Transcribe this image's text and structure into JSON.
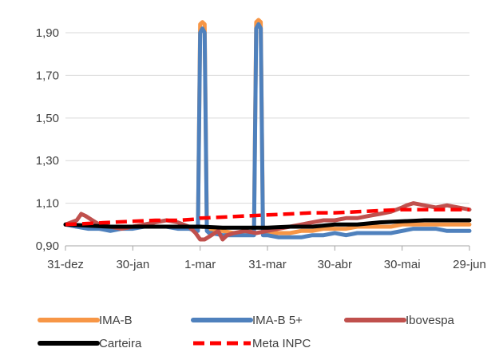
{
  "chart_data": {
    "type": "line",
    "title": "",
    "xlabel": "",
    "ylabel": "",
    "x_ticks": [
      "31-dez",
      "30-jan",
      "1-mar",
      "31-mar",
      "30-abr",
      "30-mai",
      "29-jun"
    ],
    "y_ticks": [
      "0,90",
      "1,10",
      "1,30",
      "1,50",
      "1,70",
      "1,90"
    ],
    "xlim_days": [
      0,
      180
    ],
    "ylim": [
      0.9,
      1.99
    ],
    "grid": "horizontal",
    "legend_position": "bottom",
    "series": [
      {
        "name": "IMA-B",
        "color": "#F79646",
        "x": [
          0,
          5,
          10,
          15,
          20,
          25,
          30,
          35,
          40,
          45,
          50,
          55,
          59,
          60,
          61,
          62,
          63,
          64,
          65,
          70,
          75,
          80,
          84,
          85,
          86,
          87,
          88,
          90,
          95,
          100,
          105,
          110,
          115,
          120,
          125,
          130,
          135,
          140,
          145,
          150,
          155,
          160,
          165,
          170,
          175,
          180
        ],
        "y": [
          1.0,
          0.99,
          0.99,
          0.98,
          0.98,
          0.99,
          0.99,
          1.0,
          0.99,
          0.99,
          0.99,
          0.99,
          0.98,
          1.94,
          1.95,
          1.94,
          0.99,
          0.98,
          0.97,
          0.97,
          0.96,
          0.96,
          0.97,
          1.95,
          1.96,
          1.95,
          0.97,
          0.96,
          0.96,
          0.96,
          0.97,
          0.97,
          0.98,
          0.98,
          0.98,
          0.99,
          0.99,
          0.99,
          0.99,
          1.0,
          1.0,
          1.0,
          1.0,
          1.0,
          1.0,
          1.0
        ]
      },
      {
        "name": "IMA-B 5+",
        "color": "#4F81BD",
        "x": [
          0,
          5,
          10,
          15,
          20,
          25,
          30,
          35,
          40,
          45,
          50,
          55,
          59,
          60,
          61,
          62,
          63,
          64,
          65,
          70,
          75,
          80,
          84,
          85,
          86,
          87,
          88,
          90,
          95,
          100,
          105,
          110,
          115,
          120,
          125,
          130,
          135,
          140,
          145,
          150,
          155,
          160,
          165,
          170,
          175,
          180
        ],
        "y": [
          1.0,
          0.99,
          0.98,
          0.98,
          0.97,
          0.98,
          0.98,
          0.99,
          0.99,
          0.99,
          0.98,
          0.98,
          0.97,
          1.9,
          1.92,
          1.9,
          0.97,
          0.96,
          0.96,
          0.95,
          0.95,
          0.95,
          0.95,
          1.92,
          1.94,
          1.92,
          0.95,
          0.95,
          0.94,
          0.94,
          0.94,
          0.95,
          0.95,
          0.96,
          0.95,
          0.96,
          0.96,
          0.96,
          0.96,
          0.97,
          0.98,
          0.98,
          0.98,
          0.97,
          0.97,
          0.97
        ]
      },
      {
        "name": "Ibovespa",
        "color": "#C0504D",
        "x": [
          0,
          5,
          7,
          9,
          12,
          15,
          20,
          25,
          30,
          35,
          40,
          45,
          50,
          55,
          58,
          60,
          62,
          65,
          68,
          70,
          72,
          75,
          80,
          85,
          90,
          95,
          100,
          105,
          110,
          115,
          120,
          125,
          130,
          135,
          140,
          145,
          150,
          152,
          155,
          160,
          165,
          170,
          175,
          180
        ],
        "y": [
          1.0,
          1.02,
          1.05,
          1.04,
          1.02,
          1.0,
          0.99,
          0.98,
          0.99,
          1.0,
          1.01,
          1.02,
          1.01,
          0.99,
          0.96,
          0.93,
          0.93,
          0.95,
          0.97,
          0.93,
          0.95,
          0.96,
          0.97,
          0.96,
          0.97,
          0.98,
          0.99,
          1.0,
          1.01,
          1.02,
          1.02,
          1.03,
          1.03,
          1.04,
          1.05,
          1.06,
          1.08,
          1.09,
          1.1,
          1.09,
          1.08,
          1.09,
          1.08,
          1.07
        ]
      },
      {
        "name": "Carteira",
        "color": "#000000",
        "x": [
          0,
          10,
          20,
          30,
          40,
          50,
          60,
          70,
          80,
          90,
          100,
          110,
          120,
          130,
          140,
          150,
          160,
          170,
          180
        ],
        "y": [
          1.0,
          0.995,
          0.99,
          0.99,
          0.99,
          0.99,
          0.99,
          0.985,
          0.985,
          0.985,
          0.99,
          0.99,
          1.0,
          1.0,
          1.01,
          1.015,
          1.02,
          1.02,
          1.02
        ]
      },
      {
        "name": "Meta INPC",
        "color": "#FF0000",
        "dash": true,
        "x": [
          0,
          10,
          20,
          30,
          40,
          50,
          58,
          60,
          70,
          80,
          90,
          100,
          110,
          120,
          130,
          140,
          150,
          160,
          170,
          180
        ],
        "y": [
          1.0,
          1.005,
          1.01,
          1.015,
          1.02,
          1.02,
          1.025,
          1.03,
          1.035,
          1.04,
          1.045,
          1.05,
          1.055,
          1.055,
          1.06,
          1.065,
          1.07,
          1.07,
          1.07,
          1.07
        ]
      }
    ]
  }
}
